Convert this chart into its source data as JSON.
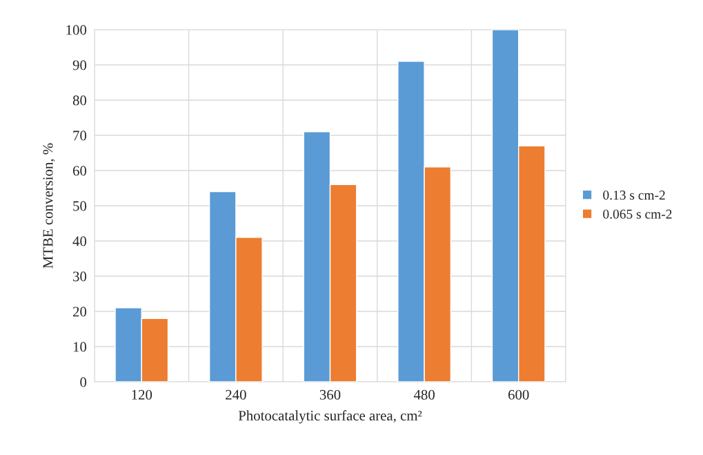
{
  "chart_data": {
    "type": "bar",
    "xlabel": "Photocatalytic surface area, cm²",
    "ylabel": "MTBE conversion, %",
    "categories": [
      "120",
      "240",
      "360",
      "480",
      "600"
    ],
    "series": [
      {
        "name": "0.13 s cm-2",
        "color": "#5b9bd5",
        "values": [
          21,
          54,
          71,
          91,
          100
        ]
      },
      {
        "name": "0.065 s cm-2",
        "color": "#ed7d31",
        "values": [
          18,
          41,
          56,
          61,
          67
        ]
      }
    ],
    "ylim": [
      0,
      100
    ],
    "yticks": [
      0,
      10,
      20,
      30,
      40,
      50,
      60,
      70,
      80,
      90,
      100
    ],
    "grid": true,
    "legend": "right"
  }
}
